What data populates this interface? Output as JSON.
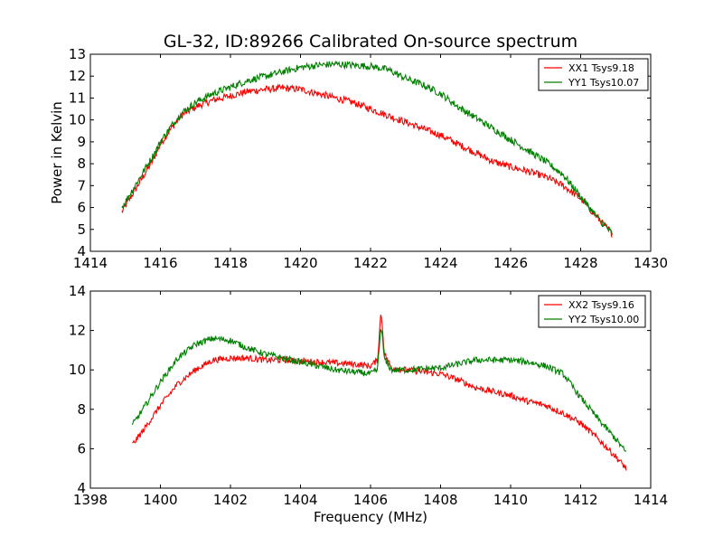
{
  "figure": {
    "title": "GL-32, ID:89266 Calibrated On-source spectrum",
    "xlabel": "Frequency (MHz)",
    "ylabel": "Power in Kelvin"
  },
  "chart_data": [
    {
      "type": "line",
      "title": "GL-32, ID:89266 Calibrated On-source spectrum",
      "xlabel": "",
      "ylabel": "Power in Kelvin",
      "xlim": [
        1414,
        1430
      ],
      "ylim": [
        4,
        13
      ],
      "xticks": [
        1414,
        1416,
        1418,
        1420,
        1422,
        1424,
        1426,
        1428,
        1430
      ],
      "yticks": [
        4,
        5,
        6,
        7,
        8,
        9,
        10,
        11,
        12,
        13
      ],
      "grid": false,
      "legend_position": "top-right",
      "series": [
        {
          "name": "XX1 Tsys9.18",
          "color": "#ff0000",
          "x": [
            1414.9,
            1415.2,
            1415.5,
            1415.8,
            1416.0,
            1416.3,
            1416.6,
            1417.0,
            1417.5,
            1418.0,
            1418.5,
            1419.0,
            1419.5,
            1420.0,
            1420.5,
            1421.0,
            1421.5,
            1422.0,
            1422.5,
            1423.0,
            1423.5,
            1424.0,
            1424.5,
            1425.0,
            1425.5,
            1426.0,
            1426.5,
            1427.0,
            1427.5,
            1428.0,
            1428.5,
            1428.9
          ],
          "y": [
            5.8,
            6.6,
            7.4,
            8.2,
            8.9,
            9.6,
            10.2,
            10.6,
            10.9,
            11.1,
            11.3,
            11.4,
            11.45,
            11.4,
            11.2,
            11.0,
            10.8,
            10.5,
            10.2,
            9.9,
            9.6,
            9.3,
            8.9,
            8.5,
            8.1,
            7.85,
            7.65,
            7.4,
            7.0,
            6.4,
            5.5,
            4.8
          ]
        },
        {
          "name": "YY1 Tsys10.07",
          "color": "#008000",
          "x": [
            1414.9,
            1415.2,
            1415.5,
            1415.8,
            1416.0,
            1416.3,
            1416.6,
            1417.0,
            1417.5,
            1418.0,
            1418.5,
            1419.0,
            1419.5,
            1420.0,
            1420.5,
            1421.0,
            1421.5,
            1422.0,
            1422.5,
            1423.0,
            1423.5,
            1424.0,
            1424.5,
            1425.0,
            1425.5,
            1426.0,
            1426.5,
            1427.0,
            1427.5,
            1428.0,
            1428.5,
            1428.9
          ],
          "y": [
            6.0,
            6.8,
            7.6,
            8.4,
            9.0,
            9.7,
            10.3,
            10.8,
            11.2,
            11.5,
            11.8,
            12.0,
            12.2,
            12.4,
            12.5,
            12.55,
            12.5,
            12.45,
            12.3,
            11.9,
            11.6,
            11.2,
            10.6,
            10.1,
            9.6,
            9.1,
            8.6,
            8.1,
            7.5,
            6.5,
            5.5,
            4.8
          ]
        }
      ]
    },
    {
      "type": "line",
      "title": "",
      "xlabel": "Frequency (MHz)",
      "ylabel": "",
      "xlim": [
        1398,
        1414
      ],
      "ylim": [
        4,
        14
      ],
      "xticks": [
        1398,
        1400,
        1402,
        1404,
        1406,
        1408,
        1410,
        1412,
        1414
      ],
      "yticks": [
        4,
        6,
        8,
        10,
        12,
        14
      ],
      "grid": false,
      "legend_position": "top-right",
      "series": [
        {
          "name": "XX2 Tsys9.16",
          "color": "#ff0000",
          "x": [
            1399.2,
            1399.5,
            1400.0,
            1400.5,
            1401.0,
            1401.5,
            1402.0,
            1402.5,
            1403.0,
            1403.5,
            1404.0,
            1404.5,
            1405.0,
            1405.5,
            1406.0,
            1406.2,
            1406.3,
            1406.4,
            1406.6,
            1407.0,
            1407.5,
            1408.0,
            1408.5,
            1409.0,
            1409.5,
            1410.0,
            1410.5,
            1411.0,
            1411.5,
            1412.0,
            1412.5,
            1413.0,
            1413.3
          ],
          "y": [
            6.2,
            6.9,
            8.2,
            9.3,
            10.0,
            10.5,
            10.6,
            10.6,
            10.5,
            10.5,
            10.45,
            10.4,
            10.35,
            10.3,
            10.2,
            10.5,
            13.0,
            10.8,
            10.1,
            10.0,
            9.9,
            9.8,
            9.5,
            9.1,
            8.9,
            8.7,
            8.4,
            8.2,
            7.8,
            7.3,
            6.5,
            5.6,
            5.0
          ]
        },
        {
          "name": "YY2 Tsys10.00",
          "color": "#008000",
          "x": [
            1399.2,
            1399.5,
            1400.0,
            1400.5,
            1401.0,
            1401.5,
            1402.0,
            1402.5,
            1403.0,
            1403.5,
            1404.0,
            1404.5,
            1405.0,
            1405.5,
            1406.0,
            1406.2,
            1406.3,
            1406.4,
            1406.6,
            1407.0,
            1407.5,
            1408.0,
            1408.5,
            1409.0,
            1409.5,
            1410.0,
            1410.5,
            1411.0,
            1411.5,
            1412.0,
            1412.5,
            1413.0,
            1413.3
          ],
          "y": [
            7.2,
            8.0,
            9.4,
            10.6,
            11.3,
            11.6,
            11.5,
            11.1,
            10.8,
            10.6,
            10.4,
            10.2,
            10.0,
            9.9,
            9.8,
            10.0,
            12.3,
            10.5,
            10.0,
            10.0,
            10.05,
            10.1,
            10.3,
            10.5,
            10.5,
            10.5,
            10.4,
            10.2,
            9.8,
            8.6,
            7.5,
            6.5,
            5.8
          ]
        }
      ]
    }
  ]
}
